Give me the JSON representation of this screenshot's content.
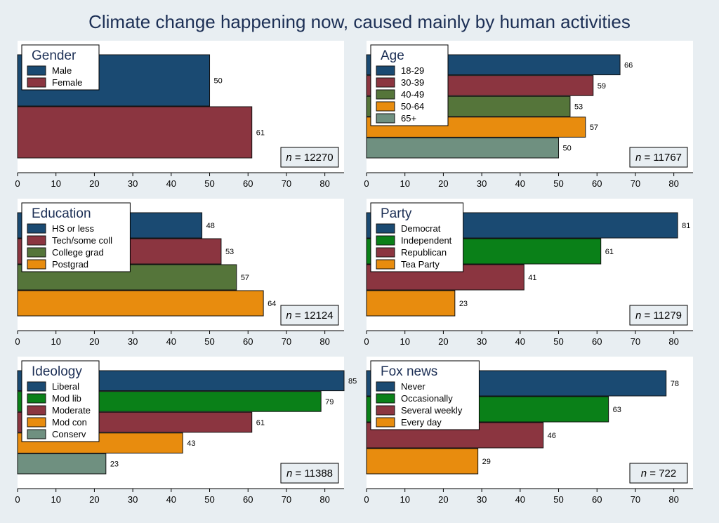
{
  "title": "Climate change happening now, caused mainly by human activities",
  "colors": {
    "navy": "#1a4a72",
    "red": "#8b3540",
    "olive": "#55753a",
    "orange": "#e88c0e",
    "green": "#0a8018",
    "gray": "#6f9080"
  },
  "chart_data": [
    {
      "type": "bar",
      "legend_title": "Gender",
      "categories": [
        "Male",
        "Female"
      ],
      "values": [
        50,
        61
      ],
      "colors": [
        "navy",
        "red"
      ],
      "n_label": "n = 12270",
      "xlim": [
        0,
        85
      ],
      "xticks": [
        0,
        10,
        20,
        30,
        40,
        50,
        60,
        70,
        80
      ],
      "legend_position": "top-left"
    },
    {
      "type": "bar",
      "legend_title": "Age",
      "categories": [
        "18-29",
        "30-39",
        "40-49",
        "50-64",
        "65+"
      ],
      "values": [
        66,
        59,
        53,
        57,
        50
      ],
      "colors": [
        "navy",
        "red",
        "olive",
        "orange",
        "gray"
      ],
      "n_label": "n = 11767",
      "xlim": [
        0,
        85
      ],
      "xticks": [
        0,
        10,
        20,
        30,
        40,
        50,
        60,
        70,
        80
      ],
      "legend_position": "top-left"
    },
    {
      "type": "bar",
      "legend_title": "Education",
      "categories": [
        "HS or less",
        "Tech/some coll",
        "College grad",
        "Postgrad"
      ],
      "values": [
        48,
        53,
        57,
        64
      ],
      "colors": [
        "navy",
        "red",
        "olive",
        "orange"
      ],
      "n_label": "n = 12124",
      "xlim": [
        0,
        85
      ],
      "xticks": [
        0,
        10,
        20,
        30,
        40,
        50,
        60,
        70,
        80
      ],
      "legend_position": "top-left"
    },
    {
      "type": "bar",
      "legend_title": "Party",
      "categories": [
        "Democrat",
        "Independent",
        "Republican",
        "Tea Party"
      ],
      "values": [
        81,
        61,
        41,
        23
      ],
      "colors": [
        "navy",
        "green",
        "red",
        "orange"
      ],
      "n_label": "n = 11279",
      "xlim": [
        0,
        85
      ],
      "xticks": [
        0,
        10,
        20,
        30,
        40,
        50,
        60,
        70,
        80
      ],
      "legend_position": "top-left"
    },
    {
      "type": "bar",
      "legend_title": "Ideology",
      "categories": [
        "Liberal",
        "Mod lib",
        "Moderate",
        "Mod con",
        "Conserv"
      ],
      "values": [
        85,
        79,
        61,
        43,
        23
      ],
      "colors": [
        "navy",
        "green",
        "red",
        "orange",
        "gray"
      ],
      "n_label": "n = 11388",
      "xlim": [
        0,
        85
      ],
      "xticks": [
        0,
        10,
        20,
        30,
        40,
        50,
        60,
        70,
        80
      ],
      "legend_position": "top-left"
    },
    {
      "type": "bar",
      "legend_title": "Fox news",
      "categories": [
        "Never",
        "Occasionally",
        "Several weekly",
        "Every day"
      ],
      "values": [
        78,
        63,
        46,
        29
      ],
      "colors": [
        "navy",
        "green",
        "red",
        "orange"
      ],
      "n_label": "n = 722",
      "xlim": [
        0,
        85
      ],
      "xticks": [
        0,
        10,
        20,
        30,
        40,
        50,
        60,
        70,
        80
      ],
      "legend_position": "top-left"
    }
  ]
}
